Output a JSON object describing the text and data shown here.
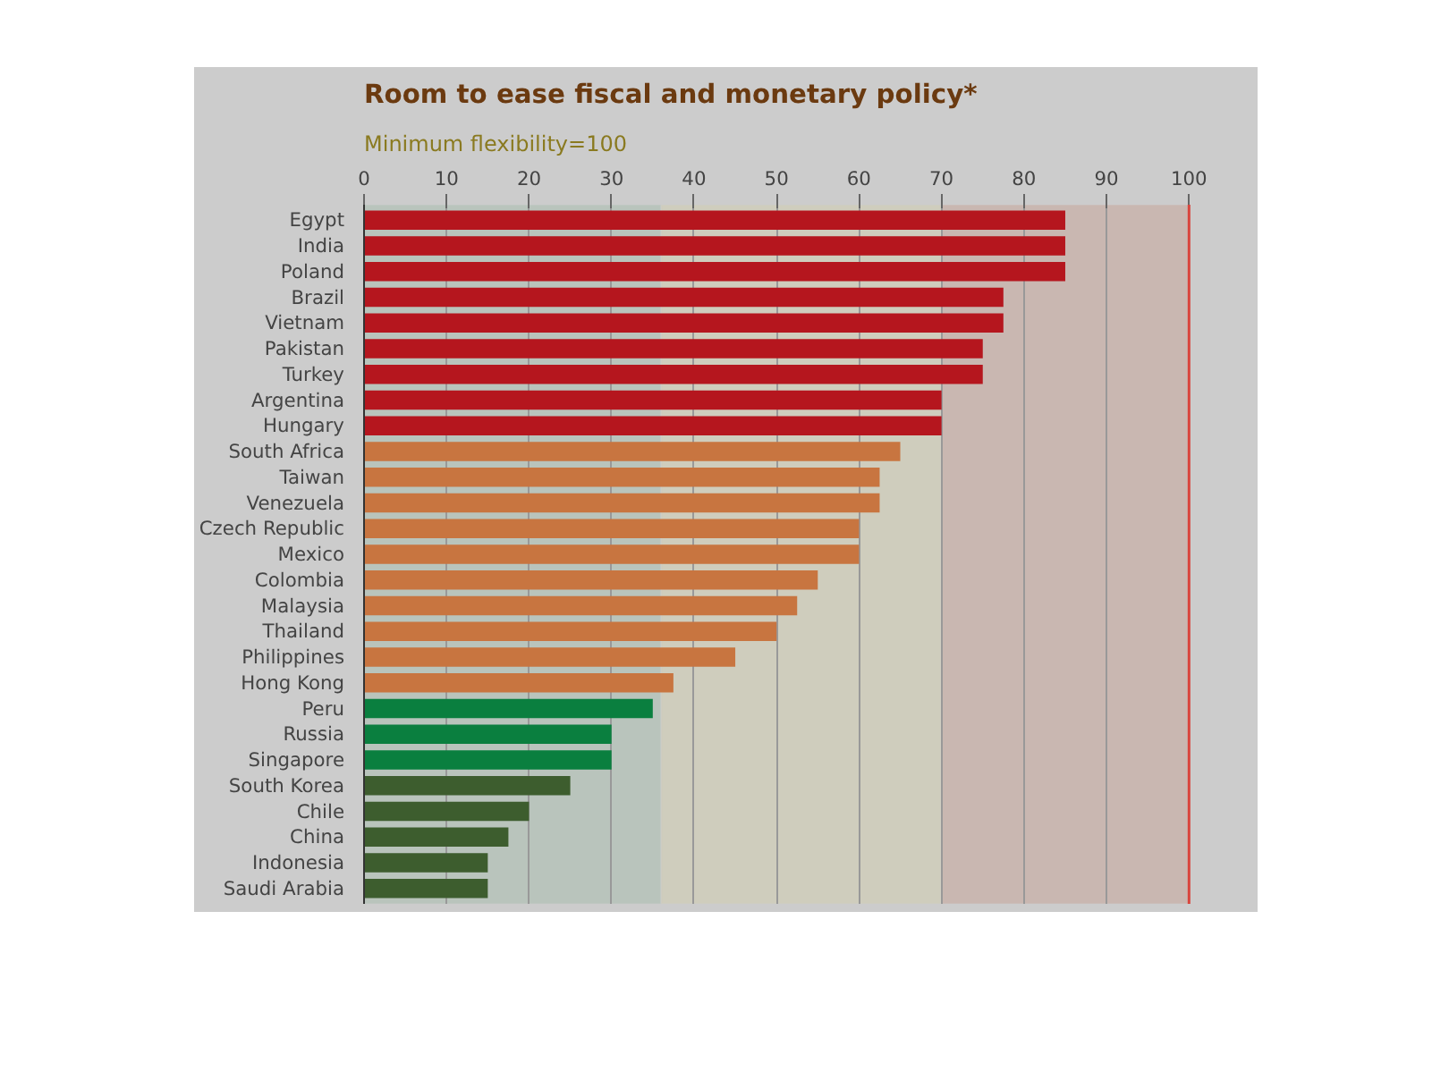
{
  "chart_data": {
    "type": "bar",
    "orientation": "horizontal",
    "title": "Room to ease fiscal and monetary policy*",
    "subtitle": "Minimum flexibility=100",
    "categories": [
      "Egypt",
      "India",
      "Poland",
      "Brazil",
      "Vietnam",
      "Pakistan",
      "Turkey",
      "Argentina",
      "Hungary",
      "South Africa",
      "Taiwan",
      "Venezuela",
      "Czech Republic",
      "Mexico",
      "Colombia",
      "Malaysia",
      "Thailand",
      "Philippines",
      "Hong Kong",
      "Peru",
      "Russia",
      "Singapore",
      "South Korea",
      "Chile",
      "China",
      "Indonesia",
      "Saudi Arabia"
    ],
    "values": [
      85,
      85,
      85,
      77.5,
      77.5,
      75,
      75,
      70,
      70,
      65,
      62.5,
      62.5,
      60,
      60,
      55,
      52.5,
      50,
      45,
      37.5,
      35,
      30,
      30,
      25,
      20,
      17.5,
      15,
      15
    ],
    "colors": [
      "#b5161e",
      "#b5161e",
      "#b5161e",
      "#b5161e",
      "#b5161e",
      "#b5161e",
      "#b5161e",
      "#b5161e",
      "#b5161e",
      "#c87540",
      "#c87540",
      "#c87540",
      "#c87540",
      "#c87540",
      "#c87540",
      "#c87540",
      "#c87540",
      "#c87540",
      "#c87540",
      "#0a7f3f",
      "#0a7f3f",
      "#0a7f3f",
      "#3d5d2e",
      "#3d5d2e",
      "#3d5d2e",
      "#3d5d2e",
      "#3d5d2e"
    ],
    "xlim": [
      0,
      103
    ],
    "xticks": [
      0,
      10,
      20,
      30,
      40,
      50,
      60,
      70,
      80,
      90,
      100
    ],
    "grid": "x",
    "bands": [
      {
        "axis": "x",
        "from": 0,
        "to": 36,
        "color": "#b9c4bc"
      },
      {
        "axis": "x",
        "from": 36,
        "to": 70,
        "color": "#cfcdbd"
      },
      {
        "axis": "x",
        "from": 70,
        "to": 100,
        "color": "#c9b7b1"
      }
    ],
    "ref_lines": [
      {
        "axis": "x",
        "value": 100,
        "color": "#d9443c"
      }
    ]
  }
}
